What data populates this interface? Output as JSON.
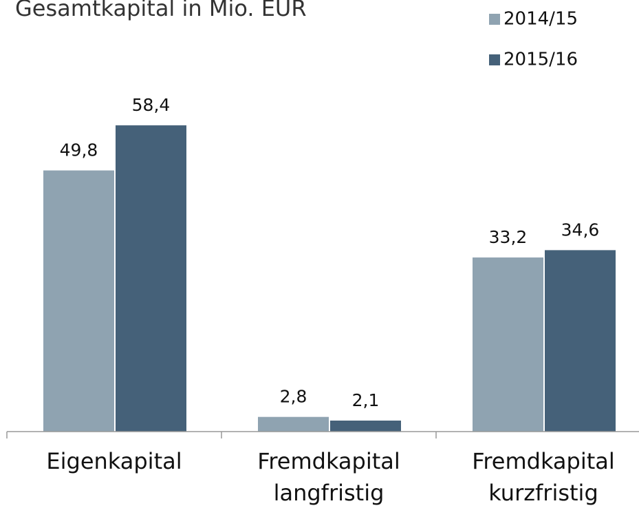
{
  "chart_data": {
    "type": "bar",
    "title": "Gesamtkapital in Mio. EUR",
    "categories": [
      [
        "Eigenkapital"
      ],
      [
        "Fremdkapital",
        "langfristig"
      ],
      [
        "Fremdkapital",
        "kurzfristig"
      ]
    ],
    "series": [
      {
        "name": "2014/15",
        "color": "#8fa3b1",
        "values": [
          49.8,
          2.8,
          33.2
        ],
        "value_labels": [
          "49,8",
          "2,8",
          "33,2"
        ]
      },
      {
        "name": "2015/16",
        "color": "#456179",
        "values": [
          58.4,
          2.1,
          34.6
        ],
        "value_labels": [
          "58,4",
          "2,1",
          "34,6"
        ]
      }
    ],
    "ylim": [
      0,
      82.3
    ],
    "legend": "top-right"
  }
}
